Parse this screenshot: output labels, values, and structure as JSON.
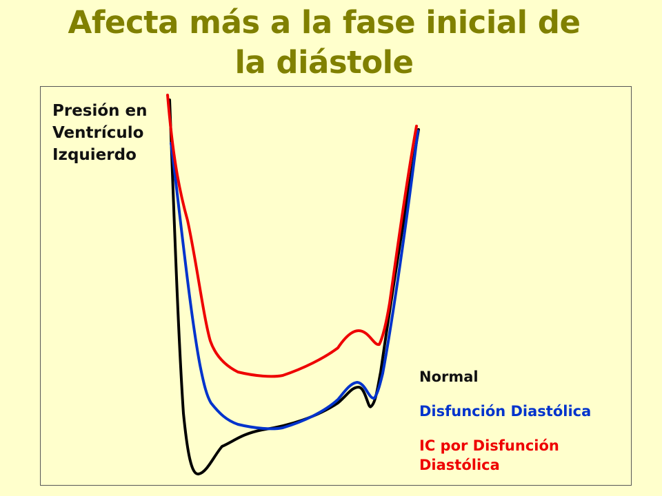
{
  "title": {
    "line1": "Afecta más a la fase inicial de",
    "line2": "la diástole"
  },
  "ylabel": {
    "line1": "Presión en",
    "line2": "Ventrículo",
    "line3": "Izquierdo"
  },
  "legend": {
    "normal": "Normal",
    "diastolic_dysfunction": "Disfunción Diastólica",
    "hf_line1": "IC por Disfunción",
    "hf_line2": "Diastólica"
  },
  "colors": {
    "title": "#808000",
    "background": "#FFFFCC",
    "normal": "#000000",
    "diastolic_dysfunction": "#0033CC",
    "hf_diastolic_dysfunction": "#EE0000"
  }
}
